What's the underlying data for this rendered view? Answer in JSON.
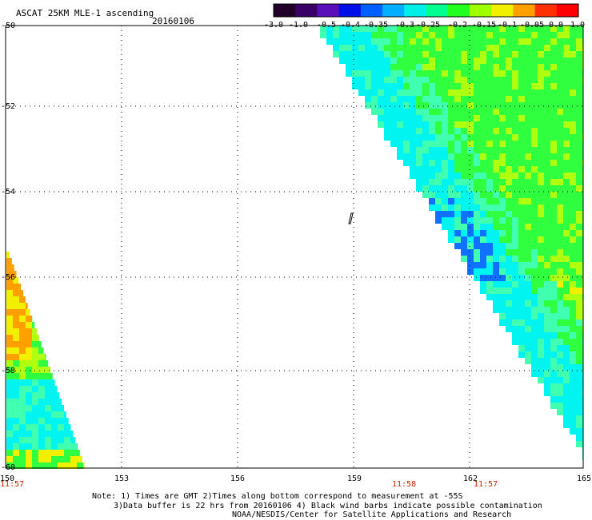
{
  "header": {
    "title": "ASCAT 25KM MLE-1 ascending",
    "date": "20160106"
  },
  "colorbar": {
    "tick_labels": [
      "-3.0",
      "-1.0",
      "-0.5",
      "-0.4",
      "-0.35",
      "-0.3",
      "-0.25",
      "-0.2",
      "-0.15",
      "-0.1",
      "-0.05",
      "0.0",
      "1.0"
    ],
    "colors": [
      "#200028",
      "#3a0068",
      "#5a10b8",
      "#0010e8",
      "#0060ff",
      "#00b0ff",
      "#00f0e8",
      "#00ff90",
      "#20ff20",
      "#a0ff00",
      "#f0f000",
      "#ffa000",
      "#ff3000",
      "#ff0000"
    ]
  },
  "map": {
    "lat_labels": [
      "-50",
      "-52",
      "-54",
      "-56",
      "-58",
      "-60"
    ],
    "lon_labels": [
      "150",
      "153",
      "156",
      "159",
      "162",
      "165"
    ],
    "time_labels": [
      "11:57",
      "11:58",
      "11:57"
    ],
    "data_colors": {
      "cyan": "#00f5f0",
      "cyan_green": "#40ffb0",
      "green": "#30ff40",
      "yellow_green": "#b0ff10",
      "yellow": "#f0f000",
      "orange": "#ffa000",
      "blue": "#1070ff"
    }
  },
  "footer": {
    "line1": "Note: 1) Times are GMT 2)Times along bottom correspond to measurement at -55S",
    "line2": "3)Data buffer is 22 hrs from 20160106 4) Black wind barbs indicate possible contamination",
    "line3": "NOAA/NESDIS/Center for Satellite Applications and Research"
  }
}
